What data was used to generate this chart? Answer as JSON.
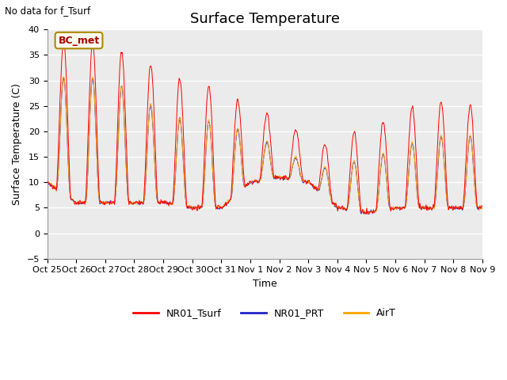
{
  "title": "Surface Temperature",
  "ylabel": "Surface Temperature (C)",
  "xlabel": "Time",
  "ylim": [
    -5,
    40
  ],
  "yticks": [
    -5,
    0,
    5,
    10,
    15,
    20,
    25,
    30,
    35,
    40
  ],
  "xtick_labels": [
    "Oct 25",
    "Oct 26",
    "Oct 27",
    "Oct 28",
    "Oct 29",
    "Oct 30",
    "Oct 31",
    "Nov 1",
    "Nov 2",
    "Nov 3",
    "Nov 4",
    "Nov 5",
    "Nov 6",
    "Nov 7",
    "Nov 8",
    "Nov 9"
  ],
  "no_data_text": "No data for f_Tsurf",
  "bc_met_label": "BC_met",
  "colors": {
    "NR01_Tsurf": "#FF0000",
    "NR01_PRT": "#2222CC",
    "AirT": "#FFA500"
  },
  "legend_labels": [
    "NR01_Tsurf",
    "NR01_PRT",
    "AirT"
  ],
  "axes_bg_color": "#EBEBEB",
  "title_fontsize": 13,
  "label_fontsize": 9,
  "tick_fontsize": 8
}
